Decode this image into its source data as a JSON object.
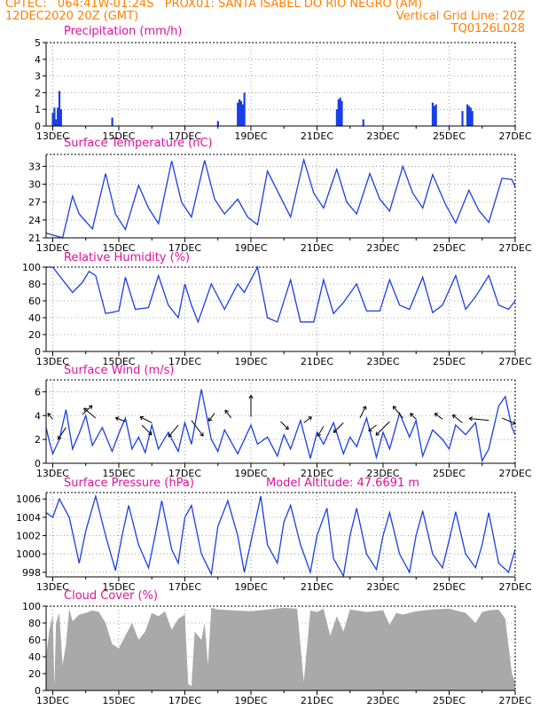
{
  "header": {
    "line1_left": "CPTEC:   064:41W-01:24S   PROX01: SANTA ISABEL DO RIO NEGRO (AM)",
    "line2_left": "12DEC2020 20Z (GMT)",
    "line2_right": "Vertical Grid Line: 20Z",
    "line3_right": "TQ0126L028"
  },
  "colors": {
    "header": "#ff7f00",
    "panel_title": "#e0109e",
    "series": "#1a3ee6",
    "cloud": "#a9a9a9",
    "grid": "#888888"
  },
  "x_axis": {
    "ticks": [
      "13DEC",
      "15DEC",
      "17DEC",
      "19DEC",
      "21DEC",
      "23DEC",
      "25DEC",
      "27DEC"
    ],
    "tick_days": [
      13,
      15,
      17,
      19,
      21,
      23,
      25,
      27
    ],
    "range_days": [
      12.8,
      27.0
    ]
  },
  "chart_data": [
    {
      "id": "precip",
      "type": "bar",
      "title": "Precipitation (mm/h)",
      "ylim": [
        0,
        5
      ],
      "yticks": [
        "0",
        "1",
        "2",
        "3",
        "4",
        "5"
      ],
      "grid": true,
      "x": [
        13.0,
        13.05,
        13.1,
        13.15,
        13.2,
        13.25,
        14.8,
        18.0,
        18.6,
        18.65,
        18.7,
        18.75,
        18.8,
        21.6,
        21.65,
        21.7,
        21.75,
        22.4,
        24.5,
        24.55,
        24.6,
        25.4,
        25.55,
        25.6,
        25.65,
        25.7
      ],
      "values": [
        0.8,
        1.1,
        0.4,
        1.1,
        2.1,
        1.0,
        0.5,
        0.3,
        1.4,
        1.6,
        1.5,
        1.3,
        2.0,
        1.0,
        1.6,
        1.7,
        1.5,
        0.4,
        1.4,
        1.2,
        1.3,
        0.9,
        1.3,
        1.2,
        1.1,
        0.9
      ]
    },
    {
      "id": "temp",
      "type": "line",
      "title": "Surface Temperature (nC)",
      "ylim": [
        21,
        35
      ],
      "yticks": [
        "21",
        "24",
        "27",
        "30",
        "33"
      ],
      "grid": true,
      "x": [
        12.8,
        13.3,
        13.6,
        13.8,
        14.2,
        14.6,
        14.9,
        15.2,
        15.6,
        15.9,
        16.2,
        16.6,
        16.9,
        17.2,
        17.6,
        17.9,
        18.2,
        18.6,
        18.9,
        19.2,
        19.5,
        19.9,
        20.2,
        20.6,
        20.9,
        21.2,
        21.6,
        21.9,
        22.2,
        22.6,
        22.9,
        23.2,
        23.6,
        23.9,
        24.2,
        24.5,
        24.9,
        25.2,
        25.6,
        25.9,
        26.2,
        26.6,
        26.9,
        27.0
      ],
      "values": [
        21.8,
        21.0,
        28.0,
        25.0,
        22.5,
        31.8,
        25.0,
        22.4,
        29.8,
        26.0,
        23.4,
        33.9,
        27.0,
        24.5,
        34.0,
        27.5,
        25.0,
        27.5,
        24.5,
        23.2,
        32.2,
        27.8,
        24.5,
        34.1,
        28.5,
        26.0,
        32.5,
        27.0,
        25.0,
        31.8,
        27.5,
        25.5,
        33.0,
        28.5,
        26.0,
        31.6,
        26.5,
        23.5,
        29.0,
        25.6,
        23.6,
        31.0,
        30.8,
        29.5
      ]
    },
    {
      "id": "rh",
      "type": "line",
      "title": "Relative Humidity (%)",
      "ylim": [
        0,
        100
      ],
      "yticks": [
        "0",
        "20",
        "40",
        "60",
        "80",
        "100"
      ],
      "grid": true,
      "x": [
        12.8,
        13.0,
        13.2,
        13.6,
        13.9,
        14.1,
        14.3,
        14.6,
        15.0,
        15.2,
        15.5,
        15.9,
        16.2,
        16.5,
        16.8,
        17.0,
        17.2,
        17.4,
        17.8,
        18.2,
        18.6,
        18.8,
        19.2,
        19.5,
        19.8,
        20.2,
        20.5,
        20.9,
        21.2,
        21.5,
        21.8,
        22.2,
        22.5,
        22.9,
        23.2,
        23.5,
        23.8,
        24.2,
        24.5,
        24.8,
        25.2,
        25.5,
        25.8,
        26.2,
        26.5,
        26.8,
        27.0
      ],
      "values": [
        100,
        100,
        90,
        70,
        82,
        95,
        90,
        45,
        48,
        88,
        50,
        52,
        90,
        55,
        40,
        80,
        55,
        35,
        80,
        50,
        80,
        70,
        100,
        40,
        35,
        85,
        35,
        35,
        85,
        45,
        58,
        80,
        48,
        48,
        85,
        55,
        50,
        88,
        46,
        55,
        90,
        50,
        65,
        90,
        55,
        50,
        60
      ]
    },
    {
      "id": "wind",
      "type": "line",
      "title": "Surface Wind (m/s)",
      "ylim": [
        0,
        7
      ],
      "yticks": [
        "0",
        "2",
        "4",
        "6"
      ],
      "grid": true,
      "x": [
        12.8,
        12.9,
        13.0,
        13.2,
        13.4,
        13.6,
        13.8,
        14.0,
        14.2,
        14.5,
        14.8,
        15.0,
        15.2,
        15.4,
        15.6,
        15.8,
        16.0,
        16.2,
        16.5,
        16.8,
        17.0,
        17.2,
        17.5,
        17.8,
        18.0,
        18.2,
        18.6,
        19.0,
        19.2,
        19.5,
        19.8,
        20.0,
        20.2,
        20.5,
        20.8,
        21.0,
        21.2,
        21.5,
        21.8,
        22.0,
        22.2,
        22.5,
        22.8,
        23.0,
        23.2,
        23.5,
        23.8,
        24.0,
        24.2,
        24.5,
        24.8,
        25.0,
        25.2,
        25.5,
        25.8,
        26.0,
        26.2,
        26.5,
        26.7,
        26.9,
        27.0
      ],
      "values": [
        3.0,
        1.8,
        0.8,
        2.0,
        4.5,
        1.2,
        2.5,
        4.0,
        1.5,
        3.0,
        1.0,
        2.5,
        3.8,
        1.2,
        2.2,
        0.9,
        3.2,
        1.2,
        2.6,
        1.0,
        3.4,
        1.6,
        6.2,
        2.0,
        1.0,
        2.8,
        0.8,
        3.2,
        1.6,
        2.2,
        0.6,
        2.4,
        1.2,
        3.6,
        0.4,
        2.6,
        1.6,
        3.4,
        0.8,
        2.2,
        1.4,
        3.8,
        0.5,
        2.6,
        1.2,
        4.2,
        2.2,
        3.6,
        0.6,
        2.8,
        2.0,
        1.2,
        3.2,
        2.4,
        3.4,
        0.2,
        1.2,
        4.8,
        5.6,
        3.0,
        2.4
      ],
      "vectors": [
        {
          "x": 13.0,
          "y": 3.7,
          "u": -0.25,
          "v": 0.3
        },
        {
          "x": 13.4,
          "y": 3.0,
          "u": -0.4,
          "v": -0.6
        },
        {
          "x": 13.9,
          "y": 4.1,
          "u": 0.5,
          "v": 0.45
        },
        {
          "x": 14.3,
          "y": 3.8,
          "u": -0.6,
          "v": 0.5
        },
        {
          "x": 15.2,
          "y": 3.5,
          "u": -0.5,
          "v": 0.2
        },
        {
          "x": 15.7,
          "y": 3.2,
          "u": 0.5,
          "v": -0.5
        },
        {
          "x": 16.0,
          "y": 3.4,
          "u": -0.6,
          "v": 0.3
        },
        {
          "x": 16.8,
          "y": 3.2,
          "u": -0.5,
          "v": -0.6
        },
        {
          "x": 17.2,
          "y": 3.6,
          "u": 0.6,
          "v": -0.8
        },
        {
          "x": 17.9,
          "y": 4.2,
          "u": -0.3,
          "v": -0.4
        },
        {
          "x": 18.4,
          "y": 3.8,
          "u": -0.3,
          "v": 0.4
        },
        {
          "x": 19.0,
          "y": 3.9,
          "u": 0,
          "v": 1.1
        },
        {
          "x": 19.9,
          "y": 3.5,
          "u": 0.4,
          "v": -0.4
        },
        {
          "x": 20.6,
          "y": 3.4,
          "u": 0.4,
          "v": 0.3
        },
        {
          "x": 21.2,
          "y": 3.1,
          "u": -0.3,
          "v": -0.5
        },
        {
          "x": 21.8,
          "y": 3.4,
          "u": -0.5,
          "v": -0.5
        },
        {
          "x": 22.3,
          "y": 3.8,
          "u": 0.3,
          "v": 0.6
        },
        {
          "x": 22.8,
          "y": 3.2,
          "u": -0.4,
          "v": -0.3
        },
        {
          "x": 23.2,
          "y": 3.5,
          "u": -0.7,
          "v": -0.7
        },
        {
          "x": 23.6,
          "y": 3.8,
          "u": -0.5,
          "v": 0.6
        },
        {
          "x": 24.0,
          "y": 3.7,
          "u": -0.3,
          "v": 0.3
        },
        {
          "x": 24.8,
          "y": 3.7,
          "u": -0.4,
          "v": 0.3
        },
        {
          "x": 25.4,
          "y": 3.4,
          "u": -0.5,
          "v": 0.4
        },
        {
          "x": 26.2,
          "y": 3.6,
          "u": -1.0,
          "v": 0.1
        },
        {
          "x": 26.6,
          "y": 3.8,
          "u": 0.7,
          "v": -0.3
        }
      ]
    },
    {
      "id": "pres",
      "type": "line",
      "title": "Surface Pressure (hPa)",
      "subtitle": "Model Altitude: 47.6691 m",
      "ylim": [
        997.5,
        1006.7
      ],
      "yticks": [
        "998",
        "1000",
        "1002",
        "1004",
        "1006"
      ],
      "grid": true,
      "x": [
        12.8,
        13.0,
        13.2,
        13.5,
        13.8,
        14.0,
        14.3,
        14.6,
        14.9,
        15.1,
        15.3,
        15.6,
        15.9,
        16.1,
        16.3,
        16.6,
        16.8,
        17.0,
        17.2,
        17.5,
        17.8,
        18.0,
        18.3,
        18.6,
        18.8,
        19.1,
        19.3,
        19.5,
        19.8,
        20.0,
        20.2,
        20.5,
        20.8,
        21.0,
        21.3,
        21.5,
        21.8,
        22.0,
        22.2,
        22.5,
        22.8,
        23.0,
        23.2,
        23.5,
        23.8,
        24.0,
        24.2,
        24.5,
        24.8,
        25.0,
        25.2,
        25.5,
        25.8,
        26.0,
        26.2,
        26.5,
        26.8,
        27.0
      ],
      "values": [
        1004.5,
        1004.0,
        1006.0,
        1004.0,
        999.0,
        1002.5,
        1006.3,
        1002.0,
        998.2,
        1002.0,
        1005.3,
        1001.0,
        998.5,
        1002.0,
        1005.8,
        1000.5,
        999.0,
        1004.0,
        1005.3,
        1000.0,
        997.8,
        1003.0,
        1005.8,
        1002.0,
        998.0,
        1003.0,
        1006.3,
        1001.0,
        999.0,
        1003.5,
        1005.3,
        1001.0,
        998.0,
        1002.0,
        1005.0,
        999.5,
        997.6,
        1002.0,
        1005.0,
        1000.0,
        998.3,
        1002.0,
        1004.5,
        1000.0,
        998.0,
        1002.0,
        1004.7,
        1000.0,
        998.5,
        1001.5,
        1004.6,
        1000.0,
        998.5,
        1001.0,
        1004.5,
        999.0,
        998.0,
        1000.5
      ]
    },
    {
      "id": "cloud",
      "type": "area",
      "title": "Cloud Cover (%)",
      "ylim": [
        0,
        100
      ],
      "yticks": [
        "0",
        "20",
        "40",
        "60",
        "80",
        "100"
      ],
      "grid": true,
      "x": [
        12.8,
        12.9,
        13.0,
        13.05,
        13.1,
        13.2,
        13.3,
        13.4,
        13.5,
        13.6,
        13.8,
        14.0,
        14.2,
        14.4,
        14.6,
        14.8,
        15.0,
        15.2,
        15.4,
        15.6,
        15.8,
        16.0,
        16.2,
        16.4,
        16.6,
        16.8,
        17.0,
        17.1,
        17.2,
        17.3,
        17.5,
        17.6,
        17.7,
        17.8,
        18.0,
        18.5,
        19.0,
        19.5,
        20.0,
        20.4,
        20.6,
        20.8,
        21.0,
        21.2,
        21.4,
        21.6,
        21.8,
        22.0,
        22.5,
        23.0,
        23.2,
        23.4,
        23.6,
        24.0,
        24.5,
        25.0,
        25.5,
        25.8,
        26.0,
        26.2,
        26.5,
        26.7,
        26.9,
        27.0
      ],
      "values": [
        40,
        72,
        90,
        5,
        80,
        92,
        30,
        55,
        97,
        82,
        90,
        92,
        95,
        93,
        80,
        55,
        50,
        65,
        80,
        60,
        70,
        92,
        88,
        94,
        72,
        85,
        90,
        8,
        5,
        70,
        60,
        80,
        30,
        98,
        96,
        95,
        94,
        96,
        98,
        97,
        10,
        95,
        93,
        97,
        65,
        88,
        70,
        96,
        93,
        95,
        78,
        92,
        90,
        94,
        96,
        97,
        92,
        80,
        93,
        95,
        96,
        85,
        20,
        10
      ]
    }
  ]
}
